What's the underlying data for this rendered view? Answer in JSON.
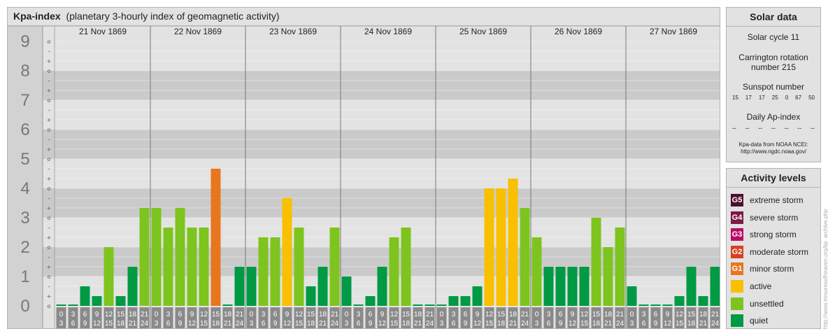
{
  "title": {
    "main": "Kpa-index",
    "subtitle": "(planetary 3-hourly index of geomagnetic activity)"
  },
  "chart_data": {
    "type": "bar",
    "ylim": [
      0,
      9
    ],
    "y_ticks": [
      "0",
      "1",
      "2",
      "3",
      "4",
      "5",
      "6",
      "7",
      "8",
      "9"
    ],
    "minor_ticks": [
      "o",
      "+",
      "–"
    ],
    "days": [
      "21 Nov 1869",
      "22 Nov 1869",
      "23 Nov 1869",
      "24 Nov 1869",
      "25 Nov 1869",
      "26 Nov 1869",
      "27 Nov 1869"
    ],
    "interval_start_labels": [
      "0",
      "3",
      "6",
      "9",
      "12",
      "15",
      "18",
      "21"
    ],
    "interval_end_labels": [
      "3",
      "6",
      "9",
      "12",
      "15",
      "18",
      "21",
      "24"
    ],
    "values": [
      [
        0,
        0,
        0.667,
        0.333,
        2,
        0.333,
        1.333,
        3.333
      ],
      [
        3.333,
        2.667,
        3.333,
        2.667,
        2.667,
        4.667,
        0,
        1.333
      ],
      [
        1.333,
        2.333,
        2.333,
        3.667,
        2.667,
        0.667,
        1.333,
        2.667
      ],
      [
        1,
        0,
        0.333,
        1.333,
        2.333,
        2.667,
        0,
        0
      ],
      [
        0,
        0.333,
        0.333,
        0.667,
        4,
        4,
        4.333,
        3.333
      ],
      [
        2.333,
        1.333,
        1.333,
        1.333,
        1.333,
        3,
        2,
        2.667
      ],
      [
        0.667,
        0,
        0,
        0,
        0.333,
        1.333,
        0.333,
        1.333
      ]
    ],
    "activity_colors": {
      "quiet": "#009944",
      "unsettled": "#7ec41e",
      "active": "#f8c000",
      "G1": "#e8761f"
    }
  },
  "solar": {
    "heading": "Solar data",
    "cycle": "Solar cycle 11",
    "carrington_line1": "Carrington rotation",
    "carrington_line2": "number 215",
    "sunspot_heading": "Sunspot number",
    "sunspot_values": [
      "15",
      "17",
      "17",
      "25",
      "0",
      "67",
      "50"
    ],
    "ap_heading": "Daily Ap-index",
    "ap_values": [
      "--",
      "--",
      "--",
      "--",
      "--",
      "--",
      "--"
    ],
    "source_line1": "Kpa-data from NOAA NCEI:",
    "source_line2": "http://www.ngdc.noaa.gov/"
  },
  "activity": {
    "heading": "Activity levels",
    "levels": [
      {
        "code": "G5",
        "label": "extreme storm",
        "color": "#4d0f2e"
      },
      {
        "code": "G4",
        "label": "severe storm",
        "color": "#7c1a48"
      },
      {
        "code": "G3",
        "label": "strong storm",
        "color": "#b80c6b"
      },
      {
        "code": "G2",
        "label": "moderate storm",
        "color": "#d6401e"
      },
      {
        "code": "G1",
        "label": "minor storm",
        "color": "#e8761f"
      },
      {
        "code": "",
        "label": "active",
        "color": "#f8c000"
      },
      {
        "code": "",
        "label": "unsettled",
        "color": "#7ec41e"
      },
      {
        "code": "",
        "label": "quiet",
        "color": "#009944"
      }
    ]
  },
  "watermark": "http://www.tresuresofheaven.org/kp_archive.php"
}
